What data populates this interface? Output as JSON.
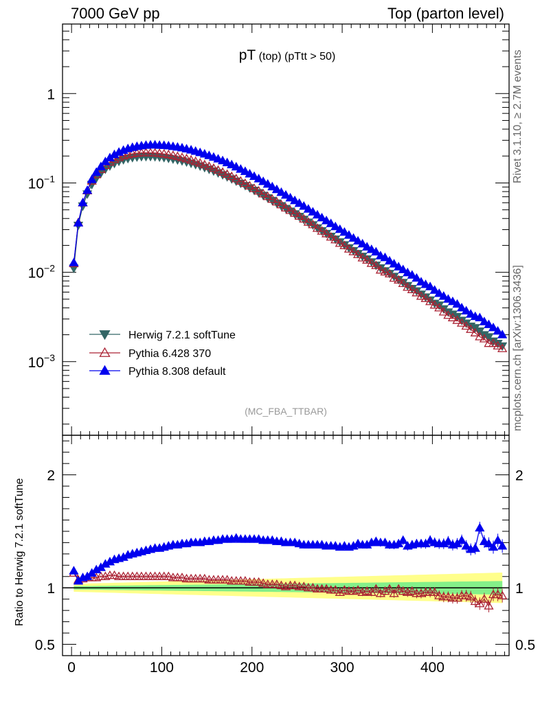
{
  "header": {
    "left": "7000 GeV pp",
    "right": "Top (parton level)"
  },
  "side_labels": {
    "top": "Rivet 3.1.10, ≥ 2.7M events",
    "bottom": "mcplots.cern.ch [arXiv:1306.3436]"
  },
  "chart_data": [
    {
      "type": "line",
      "title_main": "pT",
      "title_paren": "(top)",
      "title_cut": "(pTtt > 50)",
      "watermark": "(MC_FBA_TTBAR)",
      "yscale": "log",
      "xlim": [
        -10,
        485
      ],
      "ylim": [
        0.00015,
        6
      ],
      "x_tick_labels": [
        "0",
        "100",
        "200",
        "300",
        "400"
      ],
      "y_tick_labels": [
        {
          "base": "1",
          "exp": ""
        },
        {
          "base": "10",
          "exp": "−1"
        },
        {
          "base": "10",
          "exp": "−2"
        },
        {
          "base": "10",
          "exp": "−3"
        }
      ],
      "legend_position": "bottom-left",
      "x": [
        2.5,
        7.5,
        12.5,
        17.5,
        22.5,
        27.5,
        32.5,
        37.5,
        42.5,
        47.5,
        52.5,
        57.5,
        62.5,
        67.5,
        72.5,
        77.5,
        82.5,
        87.5,
        92.5,
        97.5,
        102.5,
        107.5,
        112.5,
        117.5,
        122.5,
        127.5,
        132.5,
        137.5,
        142.5,
        147.5,
        152.5,
        157.5,
        162.5,
        167.5,
        172.5,
        177.5,
        182.5,
        187.5,
        192.5,
        197.5,
        202.5,
        207.5,
        212.5,
        217.5,
        222.5,
        227.5,
        232.5,
        237.5,
        242.5,
        247.5,
        252.5,
        257.5,
        262.5,
        267.5,
        272.5,
        277.5,
        282.5,
        287.5,
        292.5,
        297.5,
        302.5,
        307.5,
        312.5,
        317.5,
        322.5,
        327.5,
        332.5,
        337.5,
        342.5,
        347.5,
        352.5,
        357.5,
        362.5,
        367.5,
        372.5,
        377.5,
        382.5,
        387.5,
        392.5,
        397.5,
        402.5,
        407.5,
        412.5,
        417.5,
        422.5,
        427.5,
        432.5,
        437.5,
        442.5,
        447.5,
        452.5,
        457.5,
        462.5,
        467.5,
        472.5,
        477.5
      ],
      "series": [
        {
          "name": "Herwig 7.2.1 softTune",
          "color": "#336666",
          "marker": "triangle-down-filled",
          "values": [
            0.0111,
            0.0336,
            0.0552,
            0.0753,
            0.0962,
            0.1131,
            0.1285,
            0.1428,
            0.1552,
            0.1655,
            0.1748,
            0.1822,
            0.1878,
            0.1924,
            0.1953,
            0.1972,
            0.1977,
            0.1977,
            0.1968,
            0.1952,
            0.1924,
            0.1891,
            0.1854,
            0.1814,
            0.1768,
            0.1719,
            0.1663,
            0.1608,
            0.1549,
            0.1488,
            0.1426,
            0.1362,
            0.1299,
            0.1235,
            0.1173,
            0.1111,
            0.1049,
            0.0993,
            0.0935,
            0.0882,
            0.0827,
            0.0777,
            0.0726,
            0.0681,
            0.0637,
            0.0595,
            0.0557,
            0.0518,
            0.0484,
            0.0451,
            0.0422,
            0.0392,
            0.0364,
            0.034,
            0.0314,
            0.0292,
            0.0272,
            0.0253,
            0.0235,
            0.0219,
            0.0203,
            0.0188,
            0.0175,
            0.0162,
            0.0151,
            0.0141,
            0.0131,
            0.012,
            0.0112,
            0.0104,
            0.0097,
            0.009,
            0.0083,
            0.0077,
            0.0071,
            0.0066,
            0.0062,
            0.0057,
            0.0053,
            0.0049,
            0.0045,
            0.0043,
            0.0039,
            0.0036,
            0.0034,
            0.0032,
            0.0029,
            0.0027,
            0.0025,
            0.0024,
            0.0022,
            0.002,
            0.0019,
            0.0017,
            0.0016,
            0.0015
          ]
        },
        {
          "name": "Pythia 6.428 370",
          "color": "#aa2233",
          "marker": "triangle-up-open",
          "values": [
            0.0125,
            0.036,
            0.0598,
            0.0818,
            0.105,
            0.1236,
            0.1415,
            0.1571,
            0.1716,
            0.1832,
            0.1925,
            0.2009,
            0.2069,
            0.2119,
            0.2151,
            0.2171,
            0.2176,
            0.2172,
            0.2163,
            0.2141,
            0.211,
            0.2071,
            0.2028,
            0.1978,
            0.1925,
            0.1864,
            0.1803,
            0.1738,
            0.167,
            0.16,
            0.153,
            0.146,
            0.1388,
            0.1319,
            0.125,
            0.118,
            0.1113,
            0.1048,
            0.0987,
            0.0925,
            0.0866,
            0.0812,
            0.0755,
            0.0704,
            0.0657,
            0.0613,
            0.057,
            0.0525,
            0.0492,
            0.0458,
            0.0425,
            0.0395,
            0.0364,
            0.0341,
            0.0311,
            0.0289,
            0.027,
            0.0248,
            0.0231,
            0.0211,
            0.0199,
            0.0182,
            0.017,
            0.0158,
            0.0145,
            0.0137,
            0.0126,
            0.0119,
            0.0106,
            0.0101,
            0.0096,
            0.0086,
            0.0082,
            0.0075,
            0.0068,
            0.0064,
            0.0059,
            0.0054,
            0.0051,
            0.0047,
            0.0043,
            0.004,
            0.0036,
            0.0033,
            0.0031,
            0.0029,
            0.0027,
            0.0025,
            0.0023,
            0.0021,
            0.0019,
            0.0018,
            0.0016,
            0.0016,
            0.0015,
            0.0014
          ]
        },
        {
          "name": "Pythia 8.308 default",
          "color": "#0000ee",
          "marker": "triangle-up-filled",
          "values": [
            0.0128,
            0.0357,
            0.0601,
            0.0826,
            0.1091,
            0.1315,
            0.1518,
            0.1728,
            0.191,
            0.2074,
            0.2206,
            0.2318,
            0.2418,
            0.2499,
            0.256,
            0.2601,
            0.2639,
            0.2656,
            0.2661,
            0.2641,
            0.2626,
            0.2602,
            0.2556,
            0.2516,
            0.2468,
            0.2402,
            0.2337,
            0.2262,
            0.2184,
            0.2108,
            0.2025,
            0.1941,
            0.1855,
            0.1773,
            0.1686,
            0.1598,
            0.1511,
            0.1424,
            0.1345,
            0.1262,
            0.1183,
            0.1112,
            0.1037,
            0.0969,
            0.0905,
            0.0843,
            0.0784,
            0.073,
            0.068,
            0.0634,
            0.0591,
            0.0549,
            0.0509,
            0.0473,
            0.0438,
            0.0407,
            0.0378,
            0.0351,
            0.0324,
            0.0302,
            0.0281,
            0.026,
            0.0241,
            0.0224,
            0.0208,
            0.0192,
            0.018,
            0.0169,
            0.0153,
            0.0146,
            0.0134,
            0.0124,
            0.0115,
            0.0107,
            0.0099,
            0.0093,
            0.0086,
            0.0078,
            0.0073,
            0.0069,
            0.0063,
            0.0058,
            0.0054,
            0.005,
            0.0047,
            0.0044,
            0.004,
            0.0037,
            0.0034,
            0.0032,
            0.0031,
            0.0028,
            0.0026,
            0.0024,
            0.0022,
            0.002
          ]
        }
      ]
    },
    {
      "type": "line",
      "ylabel": "Ratio to Herwig 7.2.1 softTune",
      "xlim": [
        -10,
        485
      ],
      "ylim": [
        0.4,
        2.35
      ],
      "y_tick_labels": [
        "2",
        "1",
        "0.5"
      ],
      "x_tick_labels": [
        "0",
        "100",
        "200",
        "300",
        "400"
      ],
      "band": {
        "green_halfwidth": [
          0.015,
          0.06
        ],
        "yellow_halfwidth": [
          0.035,
          0.135
        ]
      },
      "series": [
        {
          "name": "Pythia 6.428 370",
          "color": "#aa2233",
          "marker": "triangle-up-open",
          "values": [
            1.13,
            1.07,
            1.08,
            1.09,
            1.09,
            1.09,
            1.1,
            1.1,
            1.11,
            1.11,
            1.1,
            1.1,
            1.1,
            1.1,
            1.1,
            1.1,
            1.1,
            1.1,
            1.1,
            1.1,
            1.1,
            1.1,
            1.09,
            1.09,
            1.09,
            1.08,
            1.08,
            1.08,
            1.08,
            1.08,
            1.07,
            1.07,
            1.07,
            1.07,
            1.07,
            1.06,
            1.06,
            1.06,
            1.06,
            1.05,
            1.05,
            1.05,
            1.04,
            1.03,
            1.03,
            1.03,
            1.02,
            1.01,
            1.02,
            1.02,
            1.01,
            1.01,
            1.0,
            1.0,
            0.99,
            0.99,
            0.99,
            0.98,
            0.98,
            0.96,
            0.98,
            0.97,
            0.97,
            0.98,
            0.96,
            0.97,
            0.96,
            0.99,
            0.95,
            0.97,
            0.99,
            0.95,
            0.99,
            0.97,
            0.96,
            0.97,
            0.95,
            0.95,
            0.96,
            0.96,
            0.96,
            0.93,
            0.92,
            0.92,
            0.91,
            0.91,
            0.93,
            0.93,
            0.92,
            0.88,
            0.86,
            0.9,
            0.84,
            0.94,
            0.94,
            0.93
          ]
        },
        {
          "name": "Pythia 8.308 default",
          "color": "#0000ee",
          "marker": "triangle-up-filled",
          "values": [
            1.15,
            1.06,
            1.09,
            1.1,
            1.13,
            1.16,
            1.18,
            1.21,
            1.23,
            1.25,
            1.26,
            1.27,
            1.29,
            1.3,
            1.31,
            1.32,
            1.33,
            1.34,
            1.35,
            1.35,
            1.36,
            1.37,
            1.38,
            1.38,
            1.39,
            1.39,
            1.4,
            1.4,
            1.4,
            1.41,
            1.41,
            1.42,
            1.42,
            1.43,
            1.43,
            1.43,
            1.44,
            1.43,
            1.43,
            1.43,
            1.43,
            1.43,
            1.42,
            1.42,
            1.42,
            1.41,
            1.41,
            1.4,
            1.4,
            1.4,
            1.39,
            1.38,
            1.38,
            1.38,
            1.38,
            1.38,
            1.37,
            1.37,
            1.37,
            1.36,
            1.37,
            1.36,
            1.37,
            1.39,
            1.38,
            1.38,
            1.4,
            1.41,
            1.4,
            1.4,
            1.38,
            1.38,
            1.39,
            1.42,
            1.37,
            1.38,
            1.39,
            1.39,
            1.39,
            1.42,
            1.4,
            1.39,
            1.39,
            1.41,
            1.38,
            1.39,
            1.42,
            1.37,
            1.34,
            1.35,
            1.53,
            1.41,
            1.39,
            1.36,
            1.42,
            1.37
          ]
        }
      ]
    }
  ]
}
